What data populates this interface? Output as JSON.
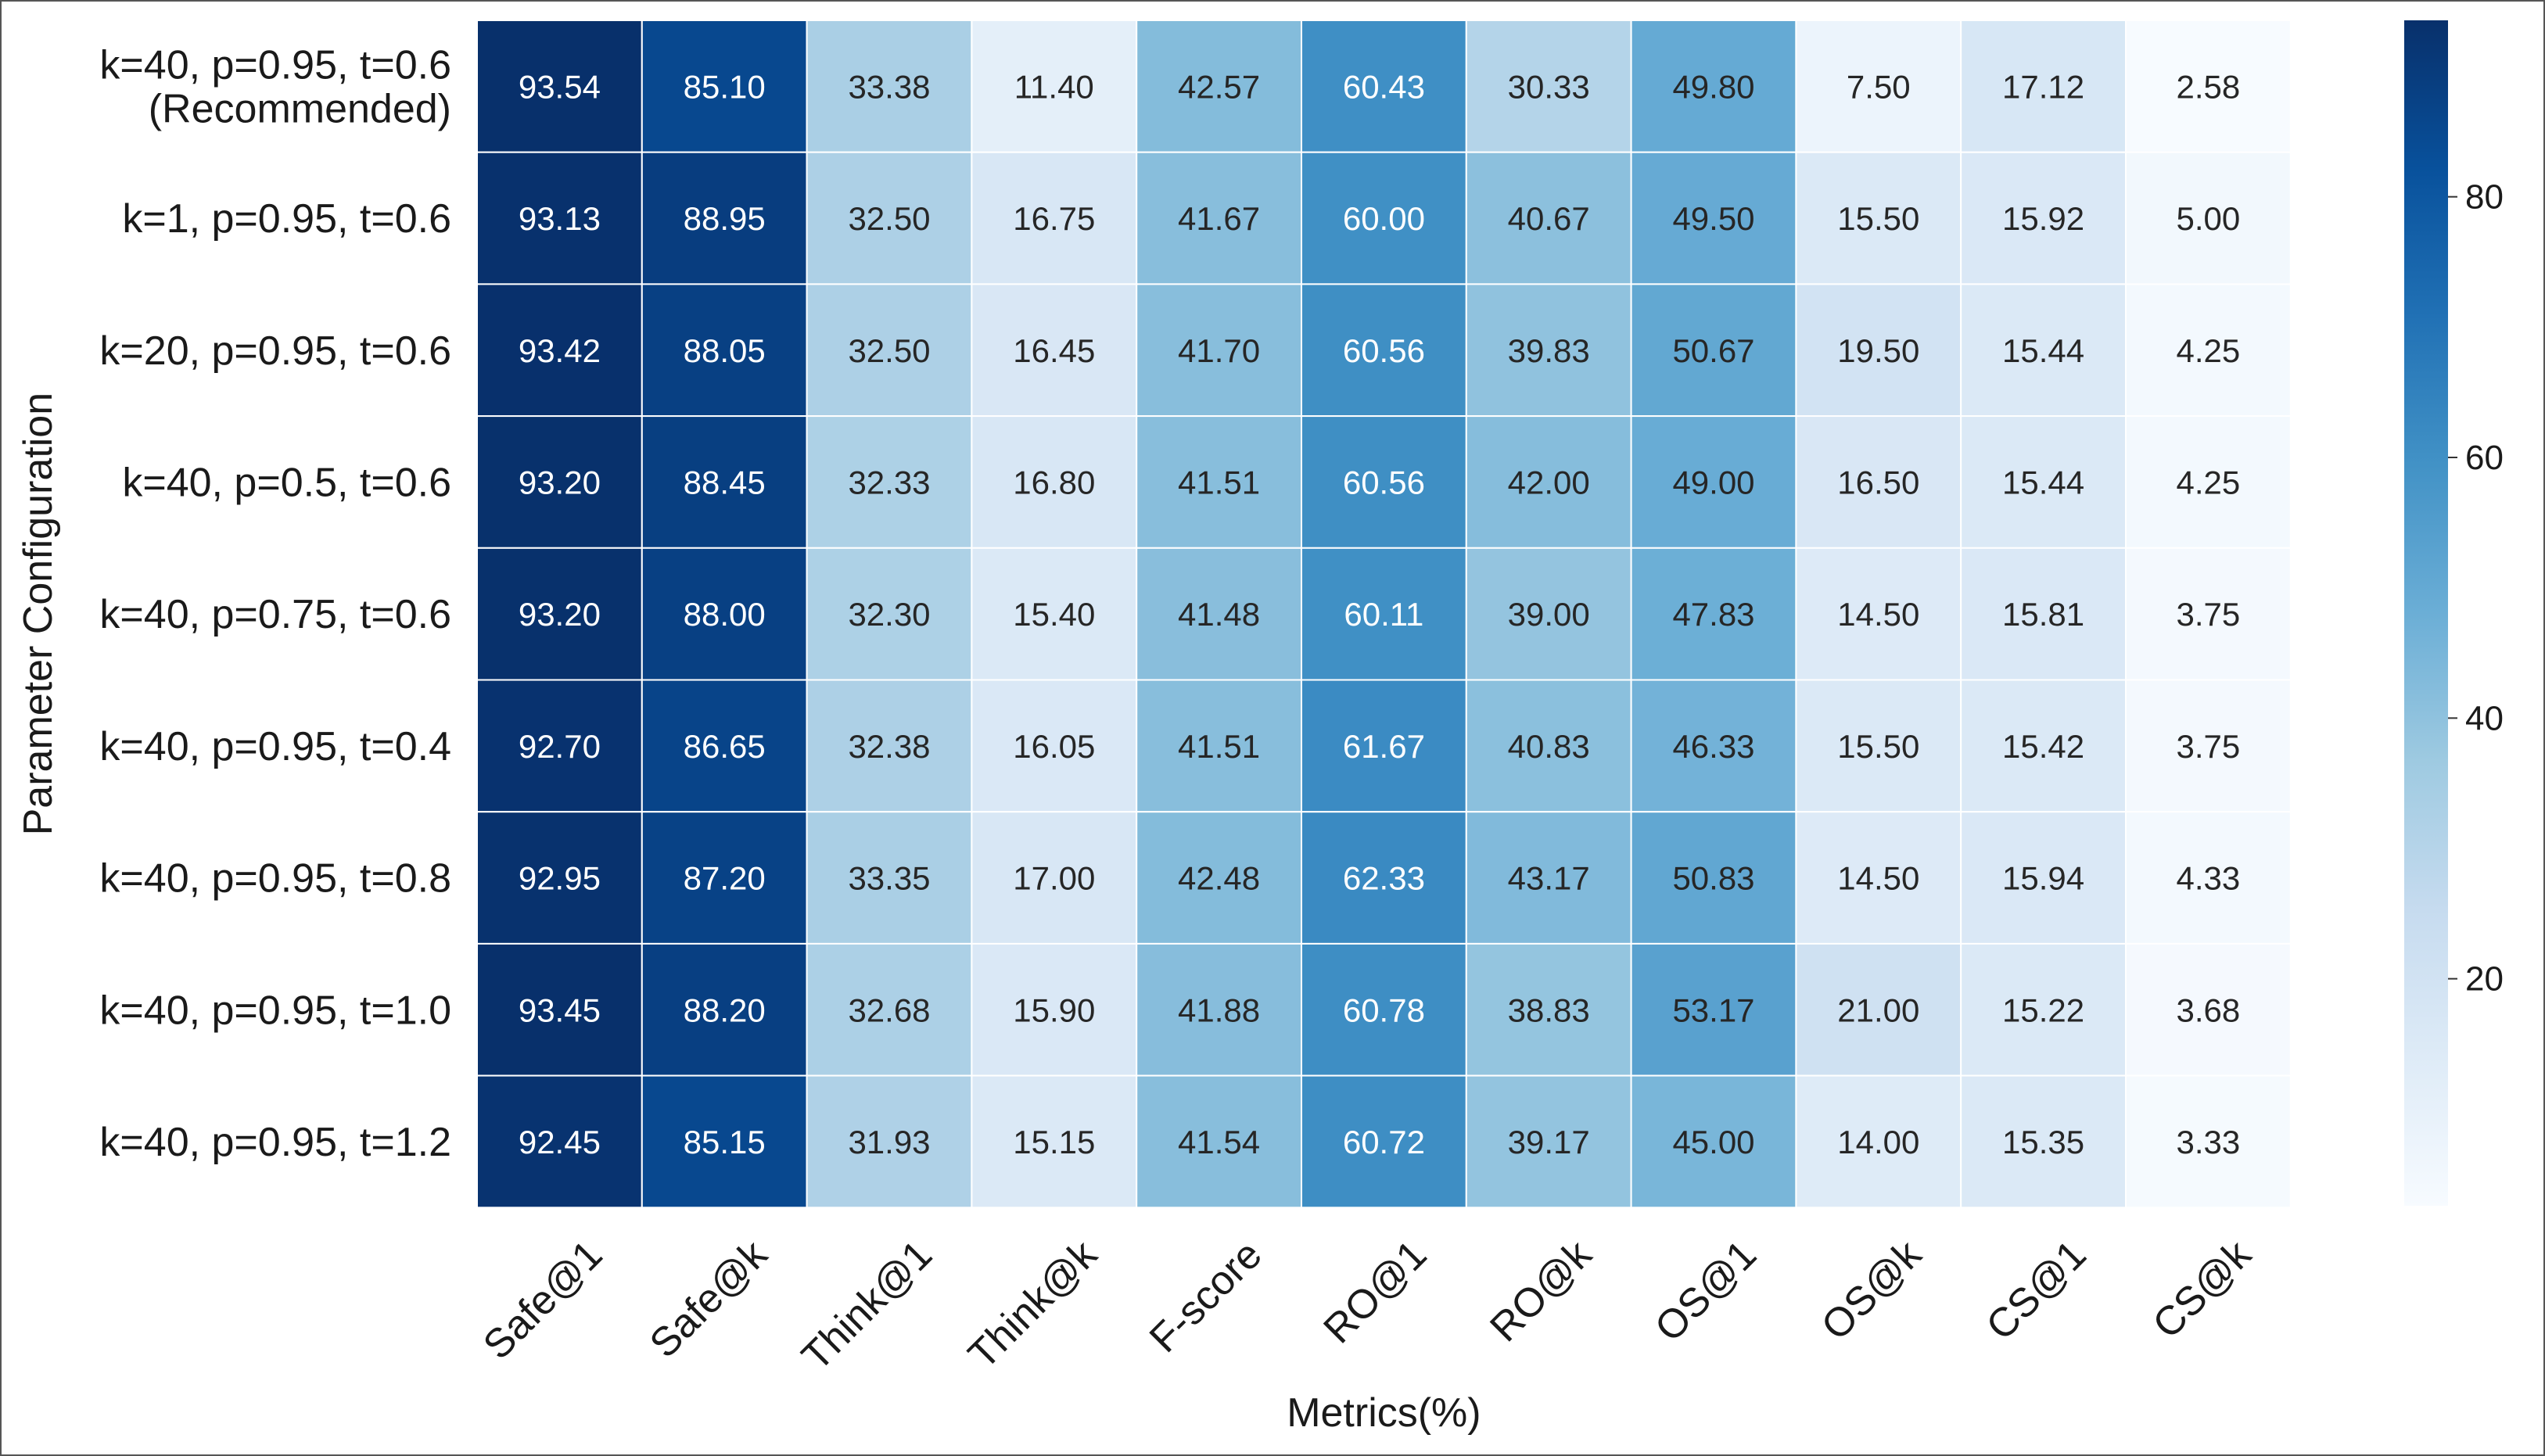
{
  "chart_data": {
    "type": "heatmap",
    "title": "",
    "xlabel": "Metrics(%)",
    "ylabel": "Parameter Configuration",
    "colormap": "Blues",
    "value_range": [
      2.58,
      93.54
    ],
    "colorbar": {
      "ticks": [
        20,
        40,
        60,
        80
      ],
      "tick_labels": [
        "20",
        "40",
        "60",
        "80"
      ]
    },
    "columns": [
      "Safe@1",
      "Safe@k",
      "Think@1",
      "Think@k",
      "F-score",
      "RO@1",
      "RO@k",
      "OS@1",
      "OS@k",
      "CS@1",
      "CS@k"
    ],
    "rows": [
      [
        "k=40, p=0.95, t=0.6",
        "(Recommended)"
      ],
      [
        "k=1, p=0.95, t=0.6"
      ],
      [
        "k=20, p=0.95, t=0.6"
      ],
      [
        "k=40, p=0.5, t=0.6"
      ],
      [
        "k=40, p=0.75, t=0.6"
      ],
      [
        "k=40, p=0.95, t=0.4"
      ],
      [
        "k=40, p=0.95, t=0.8"
      ],
      [
        "k=40, p=0.95, t=1.0"
      ],
      [
        "k=40, p=0.95, t=1.2"
      ]
    ],
    "values": [
      [
        93.54,
        85.1,
        33.38,
        11.4,
        42.57,
        60.43,
        30.33,
        49.8,
        7.5,
        17.12,
        2.58
      ],
      [
        93.13,
        88.95,
        32.5,
        16.75,
        41.67,
        60.0,
        40.67,
        49.5,
        15.5,
        15.92,
        5.0
      ],
      [
        93.42,
        88.05,
        32.5,
        16.45,
        41.7,
        60.56,
        39.83,
        50.67,
        19.5,
        15.44,
        4.25
      ],
      [
        93.2,
        88.45,
        32.33,
        16.8,
        41.51,
        60.56,
        42.0,
        49.0,
        16.5,
        15.44,
        4.25
      ],
      [
        93.2,
        88.0,
        32.3,
        15.4,
        41.48,
        60.11,
        39.0,
        47.83,
        14.5,
        15.81,
        3.75
      ],
      [
        92.7,
        86.65,
        32.38,
        16.05,
        41.51,
        61.67,
        40.83,
        46.33,
        15.5,
        15.42,
        3.75
      ],
      [
        92.95,
        87.2,
        33.35,
        17.0,
        42.48,
        62.33,
        43.17,
        50.83,
        14.5,
        15.94,
        4.33
      ],
      [
        93.45,
        88.2,
        32.68,
        15.9,
        41.88,
        60.78,
        38.83,
        53.17,
        21.0,
        15.22,
        3.68
      ],
      [
        92.45,
        85.15,
        31.93,
        15.15,
        41.54,
        60.72,
        39.17,
        45.0,
        14.0,
        15.35,
        3.33
      ]
    ]
  }
}
